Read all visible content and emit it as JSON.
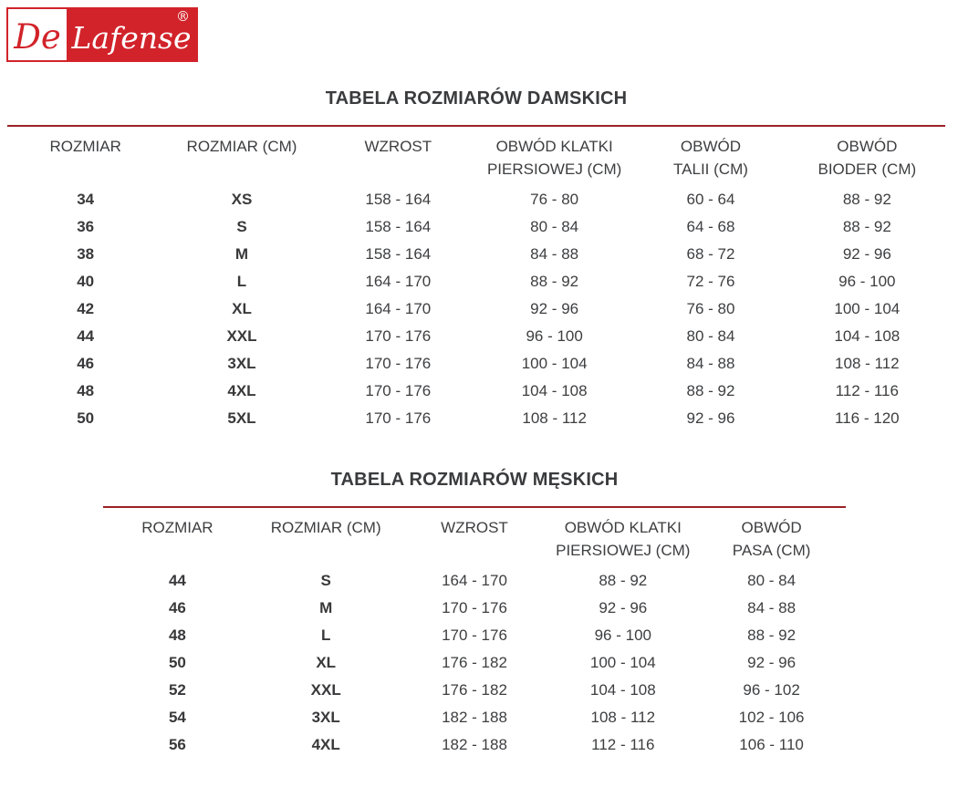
{
  "logo": {
    "de": "De",
    "brand": "Lafense",
    "registered": "®",
    "red": "#d2232a"
  },
  "colors": {
    "rule": "#9c2126",
    "text": "#3d3e40"
  },
  "women_table": {
    "title": "TABELA ROZMIARÓW DAMSKICH",
    "columns": [
      "ROZMIAR",
      "ROZMIAR (CM)",
      "WZROST",
      "OBWÓD KLATKI\nPIERSIOWEJ (CM)",
      "OBWÓD\nTALII (CM)",
      "OBWÓD\nBIODER (CM)"
    ],
    "rows": [
      [
        "34",
        "XS",
        "158 - 164",
        "76 - 80",
        "60 - 64",
        "88 - 92"
      ],
      [
        "36",
        "S",
        "158 - 164",
        "80 - 84",
        "64 - 68",
        "88 - 92"
      ],
      [
        "38",
        "M",
        "158 - 164",
        "84 - 88",
        "68 - 72",
        "92 - 96"
      ],
      [
        "40",
        "L",
        "164 - 170",
        "88 - 92",
        "72 - 76",
        "96 - 100"
      ],
      [
        "42",
        "XL",
        "164 - 170",
        "92 - 96",
        "76 - 80",
        "100 - 104"
      ],
      [
        "44",
        "XXL",
        "170 - 176",
        "96 - 100",
        "80 - 84",
        "104 - 108"
      ],
      [
        "46",
        "3XL",
        "170 - 176",
        "100 - 104",
        "84 - 88",
        "108 - 112"
      ],
      [
        "48",
        "4XL",
        "170 - 176",
        "104 - 108",
        "88 - 92",
        "112 - 116"
      ],
      [
        "50",
        "5XL",
        "170 - 176",
        "108 - 112",
        "92 - 96",
        "116 - 120"
      ]
    ]
  },
  "men_table": {
    "title": "TABELA ROZMIARÓW MĘSKICH",
    "columns": [
      "ROZMIAR",
      "ROZMIAR (CM)",
      "WZROST",
      "OBWÓD KLATKI\nPIERSIOWEJ (CM)",
      "OBWÓD\nPASA (CM)"
    ],
    "rows": [
      [
        "44",
        "S",
        "164 - 170",
        "88 - 92",
        "80 - 84"
      ],
      [
        "46",
        "M",
        "170 - 176",
        "92 - 96",
        "84 - 88"
      ],
      [
        "48",
        "L",
        "170 - 176",
        "96 - 100",
        "88 - 92"
      ],
      [
        "50",
        "XL",
        "176 - 182",
        "100 - 104",
        "92 - 96"
      ],
      [
        "52",
        "XXL",
        "176 - 182",
        "104 - 108",
        "96 - 102"
      ],
      [
        "54",
        "3XL",
        "182 - 188",
        "108 - 112",
        "102 - 106"
      ],
      [
        "56",
        "4XL",
        "182 - 188",
        "112 - 116",
        "106 - 110"
      ]
    ]
  }
}
